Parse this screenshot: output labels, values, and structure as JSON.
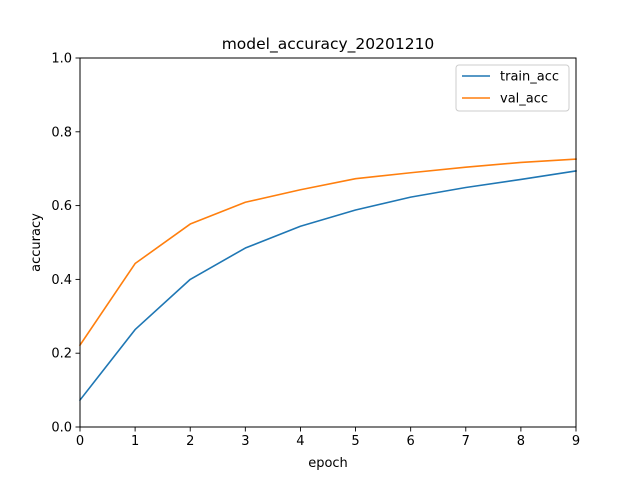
{
  "chart_data": {
    "type": "line",
    "title": "model_accuracy_20201210",
    "xlabel": "epoch",
    "ylabel": "accuracy",
    "xlim": [
      0,
      9
    ],
    "ylim": [
      0,
      1.0
    ],
    "x": [
      0,
      1,
      2,
      3,
      4,
      5,
      6,
      7,
      8,
      9
    ],
    "x_ticks": [
      "0",
      "1",
      "2",
      "3",
      "4",
      "5",
      "6",
      "7",
      "8",
      "9"
    ],
    "y_ticks": [
      {
        "value": 0.0,
        "label": "0.0"
      },
      {
        "value": 0.2,
        "label": "0.2"
      },
      {
        "value": 0.4,
        "label": "0.4"
      },
      {
        "value": 0.6,
        "label": "0.6"
      },
      {
        "value": 0.8,
        "label": "0.8"
      },
      {
        "value": 1.0,
        "label": "1.0"
      }
    ],
    "grid": false,
    "legend_position": "top-right",
    "series": [
      {
        "name": "train_acc",
        "color": "#1f77b4",
        "values": [
          0.073,
          0.264,
          0.4,
          0.485,
          0.544,
          0.588,
          0.623,
          0.649,
          0.671,
          0.694
        ]
      },
      {
        "name": "val_acc",
        "color": "#ff7f0e",
        "values": [
          0.222,
          0.443,
          0.55,
          0.609,
          0.643,
          0.673,
          0.689,
          0.704,
          0.717,
          0.726
        ]
      }
    ]
  }
}
